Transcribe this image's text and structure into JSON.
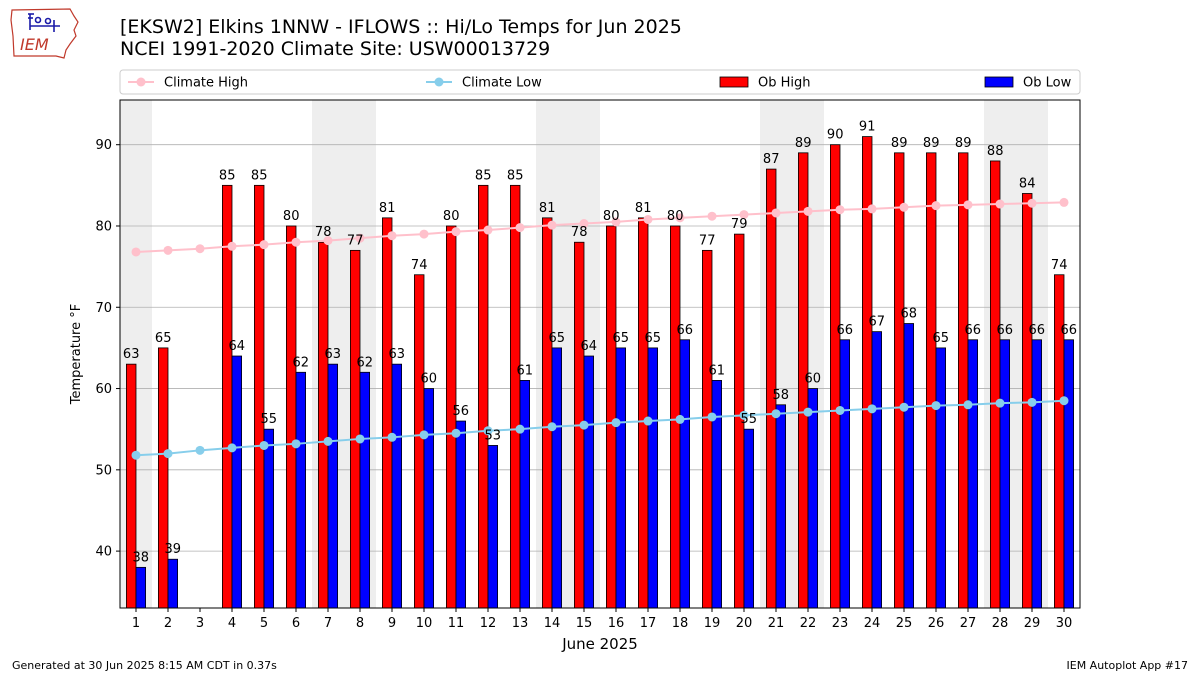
{
  "header": {
    "title_line1": "[EKSW2] Elkins 1NNW - IFLOWS :: Hi/Lo Temps for Jun 2025",
    "title_line2": "NCEI 1991-2020 Climate Site: USW00013729",
    "logo_text": "IEM"
  },
  "footer": {
    "generated": "Generated at 30 Jun 2025 8:15 AM CDT in 0.37s",
    "app": "IEM Autoplot App #17"
  },
  "colors": {
    "ob_high": "#ff0000",
    "ob_low": "#0000ff",
    "climate_high": "#ffc0cb",
    "climate_low": "#87ceeb",
    "weekend_shade": "#eeeeee"
  },
  "chart_data": {
    "type": "bar",
    "xlabel": "June 2025",
    "ylabel": "Temperature °F",
    "ylim": [
      33,
      95.5
    ],
    "yticks": [
      40,
      50,
      60,
      70,
      80,
      90
    ],
    "grid": "horizontal",
    "legend_placement": "top",
    "categories": [
      "1",
      "2",
      "3",
      "4",
      "5",
      "6",
      "7",
      "8",
      "9",
      "10",
      "11",
      "12",
      "13",
      "14",
      "15",
      "16",
      "17",
      "18",
      "19",
      "20",
      "21",
      "22",
      "23",
      "24",
      "25",
      "26",
      "27",
      "28",
      "29",
      "30"
    ],
    "shaded_days": [
      1,
      7,
      8,
      14,
      15,
      21,
      22,
      28,
      29
    ],
    "series": [
      {
        "name": "Ob High",
        "kind": "bar",
        "values": [
          63,
          65,
          null,
          85,
          85,
          80,
          78,
          77,
          81,
          74,
          80,
          85,
          85,
          81,
          78,
          80,
          81,
          80,
          77,
          79,
          87,
          89,
          90,
          91,
          89,
          89,
          89,
          88,
          84,
          74
        ]
      },
      {
        "name": "Ob Low",
        "kind": "bar",
        "values": [
          38,
          39,
          null,
          64,
          55,
          62,
          63,
          62,
          63,
          60,
          56,
          53,
          61,
          65,
          64,
          65,
          65,
          66,
          61,
          55,
          58,
          60,
          66,
          67,
          68,
          65,
          66,
          66,
          66,
          66
        ]
      },
      {
        "name": "Climate High",
        "kind": "line",
        "values": [
          76.8,
          77.0,
          77.2,
          77.5,
          77.7,
          78.0,
          78.2,
          78.5,
          78.8,
          79.0,
          79.3,
          79.5,
          79.8,
          80.1,
          80.3,
          80.5,
          80.8,
          81.0,
          81.2,
          81.4,
          81.6,
          81.8,
          82.0,
          82.1,
          82.3,
          82.5,
          82.6,
          82.7,
          82.8,
          82.9
        ]
      },
      {
        "name": "Climate Low",
        "kind": "line",
        "values": [
          51.8,
          52.0,
          52.4,
          52.7,
          53.0,
          53.2,
          53.5,
          53.8,
          54.0,
          54.3,
          54.5,
          54.8,
          55.0,
          55.3,
          55.5,
          55.8,
          56.0,
          56.2,
          56.5,
          56.7,
          56.9,
          57.1,
          57.3,
          57.5,
          57.7,
          57.9,
          58.0,
          58.2,
          58.3,
          58.5
        ]
      }
    ]
  }
}
